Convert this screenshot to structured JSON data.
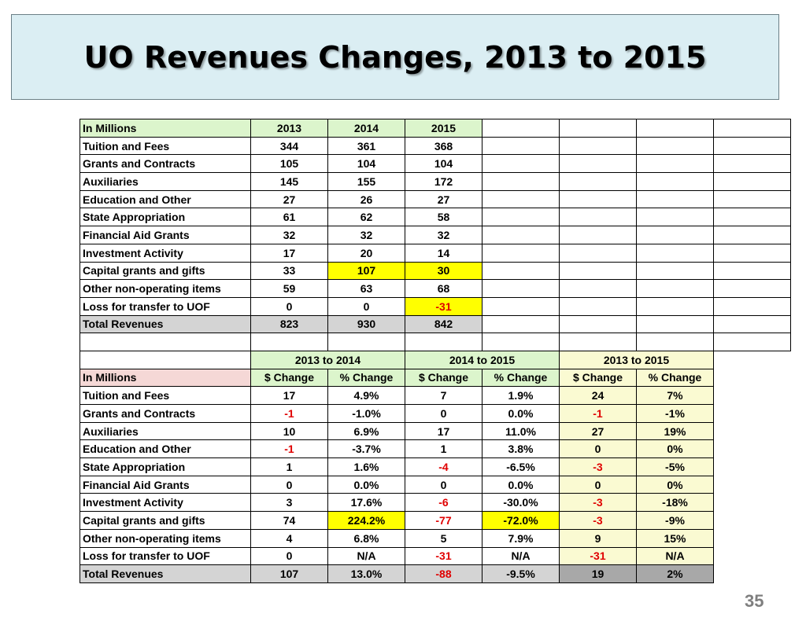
{
  "title": "UO Revenues Changes, 2013 to 2015",
  "page_number": "35",
  "colors": {
    "title_background": "#dbeef3",
    "header_green": "#dcf5cc",
    "header_pink": "#f5d8d6",
    "highlight_yellow": "#ffff00",
    "total_gray": "#d4d4d4",
    "light_yellow": "#fafad2",
    "dark_gray": "#a8a8a8",
    "negative_red": "#e00000"
  },
  "top_table": {
    "header": {
      "label": "In Millions",
      "years": [
        "2013",
        "2014",
        "2015"
      ]
    },
    "rows": [
      {
        "label": "Tuition and Fees",
        "values": [
          "344",
          "361",
          "368"
        ]
      },
      {
        "label": "Grants and Contracts",
        "values": [
          "105",
          "104",
          "104"
        ]
      },
      {
        "label": "Auxiliaries",
        "values": [
          "145",
          "155",
          "172"
        ]
      },
      {
        "label": "Education and Other",
        "values": [
          "27",
          "26",
          "27"
        ]
      },
      {
        "label": "State Appropriation",
        "values": [
          "61",
          "62",
          "58"
        ]
      },
      {
        "label": "Financial Aid Grants",
        "values": [
          "32",
          "32",
          "32"
        ]
      },
      {
        "label": "Investment Activity",
        "values": [
          "17",
          "20",
          "14"
        ]
      },
      {
        "label": "Capital grants and gifts",
        "values": [
          "33",
          "107",
          "30"
        ]
      },
      {
        "label": "Other non-operating items",
        "values": [
          "59",
          "63",
          "68"
        ]
      },
      {
        "label": "Loss for transfer to UOF",
        "values": [
          "0",
          "0",
          "-31"
        ]
      },
      {
        "label": "Total Revenues",
        "values": [
          "823",
          "930",
          "842"
        ]
      }
    ]
  },
  "bottom_table": {
    "period_headers": [
      "2013 to 2014",
      "2014 to 2015",
      "2013 to 2015"
    ],
    "header": {
      "label": "In Millions",
      "columns": [
        "$ Change",
        "% Change",
        "$ Change",
        "% Change",
        "$ Change",
        "% Change"
      ]
    },
    "rows": [
      {
        "label": "Tuition and Fees",
        "values": [
          "17",
          "4.9%",
          "7",
          "1.9%",
          "24",
          "7%"
        ]
      },
      {
        "label": "Grants and Contracts",
        "values": [
          "-1",
          "-1.0%",
          "0",
          "0.0%",
          "-1",
          "-1%"
        ]
      },
      {
        "label": "Auxiliaries",
        "values": [
          "10",
          "6.9%",
          "17",
          "11.0%",
          "27",
          "19%"
        ]
      },
      {
        "label": "Education and Other",
        "values": [
          "-1",
          "-3.7%",
          "1",
          "3.8%",
          "0",
          "0%"
        ]
      },
      {
        "label": "State Appropriation",
        "values": [
          "1",
          "1.6%",
          "-4",
          "-6.5%",
          "-3",
          "-5%"
        ]
      },
      {
        "label": "Financial Aid Grants",
        "values": [
          "0",
          "0.0%",
          "0",
          "0.0%",
          "0",
          "0%"
        ]
      },
      {
        "label": "Investment Activity",
        "values": [
          "3",
          "17.6%",
          "-6",
          "-30.0%",
          "-3",
          "-18%"
        ]
      },
      {
        "label": "Capital grants and gifts",
        "values": [
          "74",
          "224.2%",
          "-77",
          "-72.0%",
          "-3",
          "-9%"
        ]
      },
      {
        "label": "Other non-operating items",
        "values": [
          "4",
          "6.8%",
          "5",
          "7.9%",
          "9",
          "15%"
        ]
      },
      {
        "label": "Loss for transfer to UOF",
        "values": [
          "0",
          "N/A",
          "-31",
          "N/A",
          "-31",
          "N/A"
        ]
      },
      {
        "label": "Total Revenues",
        "values": [
          "107",
          "13.0%",
          "-88",
          "-9.5%",
          "19",
          "2%"
        ]
      }
    ]
  }
}
